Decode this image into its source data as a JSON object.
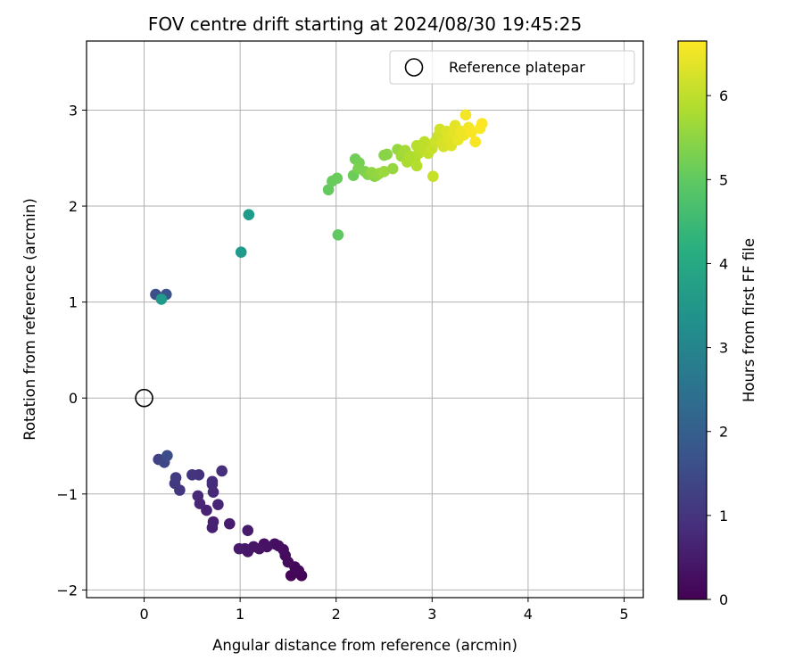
{
  "chart_data": {
    "type": "scatter",
    "title": "FOV centre drift starting at 2024/08/30 19:45:25",
    "xlabel": "Angular distance from reference (arcmin)",
    "ylabel": "Rotation from reference (arcmin)",
    "xlim": [
      -0.6,
      5.2
    ],
    "ylim": [
      -2.08,
      3.72
    ],
    "xticks": [
      0,
      1,
      2,
      3,
      4,
      5
    ],
    "yticks": [
      -2,
      -1,
      0,
      1,
      2,
      3
    ],
    "xtick_labels": [
      "0",
      "1",
      "2",
      "3",
      "4",
      "5"
    ],
    "ytick_labels": [
      "−2",
      "−1",
      "0",
      "1",
      "2",
      "3"
    ],
    "grid": true,
    "legend": {
      "placement": "top-right",
      "entries": [
        "Reference platepar"
      ]
    },
    "reference_point": {
      "x": 0,
      "y": 0,
      "marker": "open-circle",
      "label": "Reference platepar"
    },
    "colorbar": {
      "label": "Hours from first FF file",
      "colormap": "viridis",
      "range": [
        0,
        6.65
      ],
      "ticks": [
        0,
        1,
        2,
        3,
        4,
        5,
        6
      ],
      "tick_labels": [
        "0",
        "1",
        "2",
        "3",
        "4",
        "5",
        "6"
      ]
    },
    "points": [
      {
        "x": 1.64,
        "y": -1.85,
        "c": 0.05
      },
      {
        "x": 1.53,
        "y": -1.85,
        "c": 0.1
      },
      {
        "x": 1.61,
        "y": -1.8,
        "c": 0.12
      },
      {
        "x": 1.57,
        "y": -1.76,
        "c": 0.15
      },
      {
        "x": 1.5,
        "y": -1.71,
        "c": 0.18
      },
      {
        "x": 1.47,
        "y": -1.64,
        "c": 0.2
      },
      {
        "x": 1.45,
        "y": -1.58,
        "c": 0.22
      },
      {
        "x": 1.4,
        "y": -1.54,
        "c": 0.25
      },
      {
        "x": 1.36,
        "y": -1.52,
        "c": 0.27
      },
      {
        "x": 1.25,
        "y": -1.52,
        "c": 0.3
      },
      {
        "x": 1.28,
        "y": -1.55,
        "c": 0.32
      },
      {
        "x": 1.2,
        "y": -1.57,
        "c": 0.35
      },
      {
        "x": 1.14,
        "y": -1.55,
        "c": 0.37
      },
      {
        "x": 1.08,
        "y": -1.6,
        "c": 0.4
      },
      {
        "x": 1.05,
        "y": -1.57,
        "c": 0.42
      },
      {
        "x": 0.99,
        "y": -1.57,
        "c": 0.45
      },
      {
        "x": 1.08,
        "y": -1.38,
        "c": 0.5
      },
      {
        "x": 0.89,
        "y": -1.31,
        "c": 0.55
      },
      {
        "x": 0.71,
        "y": -1.35,
        "c": 0.6
      },
      {
        "x": 0.72,
        "y": -1.29,
        "c": 0.62
      },
      {
        "x": 0.65,
        "y": -1.17,
        "c": 0.65
      },
      {
        "x": 0.77,
        "y": -1.11,
        "c": 0.7
      },
      {
        "x": 0.58,
        "y": -1.1,
        "c": 0.72
      },
      {
        "x": 0.56,
        "y": -1.02,
        "c": 0.75
      },
      {
        "x": 0.72,
        "y": -0.98,
        "c": 0.8
      },
      {
        "x": 0.71,
        "y": -0.9,
        "c": 0.82
      },
      {
        "x": 0.71,
        "y": -0.87,
        "c": 0.85
      },
      {
        "x": 0.81,
        "y": -0.76,
        "c": 0.9
      },
      {
        "x": 0.57,
        "y": -0.8,
        "c": 0.95
      },
      {
        "x": 0.5,
        "y": -0.8,
        "c": 1.0
      },
      {
        "x": 0.37,
        "y": -0.96,
        "c": 1.05
      },
      {
        "x": 0.32,
        "y": -0.89,
        "c": 1.1
      },
      {
        "x": 0.33,
        "y": -0.83,
        "c": 1.15
      },
      {
        "x": 0.15,
        "y": -0.64,
        "c": 1.3
      },
      {
        "x": 0.21,
        "y": -0.67,
        "c": 1.4
      },
      {
        "x": 0.24,
        "y": -0.6,
        "c": 1.55
      },
      {
        "x": 0.12,
        "y": 1.08,
        "c": 1.6
      },
      {
        "x": 0.23,
        "y": 1.08,
        "c": 1.7
      },
      {
        "x": 0.18,
        "y": 1.03,
        "c": 3.6
      },
      {
        "x": 1.01,
        "y": 1.52,
        "c": 3.6
      },
      {
        "x": 1.09,
        "y": 1.91,
        "c": 3.65
      },
      {
        "x": 2.02,
        "y": 1.7,
        "c": 5.0
      },
      {
        "x": 1.92,
        "y": 2.17,
        "c": 5.05
      },
      {
        "x": 1.96,
        "y": 2.26,
        "c": 5.1
      },
      {
        "x": 2.01,
        "y": 2.29,
        "c": 5.12
      },
      {
        "x": 2.18,
        "y": 2.32,
        "c": 5.15
      },
      {
        "x": 2.2,
        "y": 2.49,
        "c": 5.2
      },
      {
        "x": 2.24,
        "y": 2.45,
        "c": 5.25
      },
      {
        "x": 2.23,
        "y": 2.39,
        "c": 5.3
      },
      {
        "x": 2.3,
        "y": 2.36,
        "c": 5.35
      },
      {
        "x": 2.33,
        "y": 2.33,
        "c": 5.4
      },
      {
        "x": 2.4,
        "y": 2.31,
        "c": 5.45
      },
      {
        "x": 2.42,
        "y": 2.32,
        "c": 5.5
      },
      {
        "x": 2.37,
        "y": 2.35,
        "c": 5.55
      },
      {
        "x": 2.45,
        "y": 2.34,
        "c": 5.6
      },
      {
        "x": 2.5,
        "y": 2.36,
        "c": 5.65
      },
      {
        "x": 2.53,
        "y": 2.54,
        "c": 5.5
      },
      {
        "x": 2.5,
        "y": 2.53,
        "c": 5.45
      },
      {
        "x": 2.59,
        "y": 2.39,
        "c": 5.6
      },
      {
        "x": 2.64,
        "y": 2.59,
        "c": 5.6
      },
      {
        "x": 2.68,
        "y": 2.52,
        "c": 5.7
      },
      {
        "x": 2.72,
        "y": 2.58,
        "c": 5.75
      },
      {
        "x": 2.74,
        "y": 2.46,
        "c": 5.8
      },
      {
        "x": 2.77,
        "y": 2.52,
        "c": 5.85
      },
      {
        "x": 2.82,
        "y": 2.48,
        "c": 5.85
      },
      {
        "x": 2.84,
        "y": 2.42,
        "c": 5.9
      },
      {
        "x": 2.86,
        "y": 2.55,
        "c": 5.9
      },
      {
        "x": 2.84,
        "y": 2.63,
        "c": 5.95
      },
      {
        "x": 2.9,
        "y": 2.58,
        "c": 6.0
      },
      {
        "x": 2.92,
        "y": 2.67,
        "c": 6.0
      },
      {
        "x": 2.96,
        "y": 2.55,
        "c": 6.05
      },
      {
        "x": 3.0,
        "y": 2.6,
        "c": 6.1
      },
      {
        "x": 3.01,
        "y": 2.31,
        "c": 6.1
      },
      {
        "x": 3.03,
        "y": 2.67,
        "c": 6.15
      },
      {
        "x": 3.06,
        "y": 2.73,
        "c": 6.15
      },
      {
        "x": 3.08,
        "y": 2.8,
        "c": 6.2
      },
      {
        "x": 3.1,
        "y": 2.66,
        "c": 6.25
      },
      {
        "x": 3.12,
        "y": 2.62,
        "c": 6.25
      },
      {
        "x": 3.15,
        "y": 2.78,
        "c": 6.3
      },
      {
        "x": 3.17,
        "y": 2.7,
        "c": 6.35
      },
      {
        "x": 3.2,
        "y": 2.63,
        "c": 6.35
      },
      {
        "x": 3.22,
        "y": 2.76,
        "c": 6.4
      },
      {
        "x": 3.24,
        "y": 2.84,
        "c": 6.4
      },
      {
        "x": 3.27,
        "y": 2.69,
        "c": 6.45
      },
      {
        "x": 3.3,
        "y": 2.78,
        "c": 6.5
      },
      {
        "x": 3.33,
        "y": 2.74,
        "c": 6.5
      },
      {
        "x": 3.35,
        "y": 2.95,
        "c": 6.55
      },
      {
        "x": 3.38,
        "y": 2.82,
        "c": 6.55
      },
      {
        "x": 3.41,
        "y": 2.77,
        "c": 6.6
      },
      {
        "x": 3.45,
        "y": 2.67,
        "c": 6.6
      },
      {
        "x": 3.5,
        "y": 2.81,
        "c": 6.62
      },
      {
        "x": 3.52,
        "y": 2.86,
        "c": 6.65
      }
    ]
  }
}
